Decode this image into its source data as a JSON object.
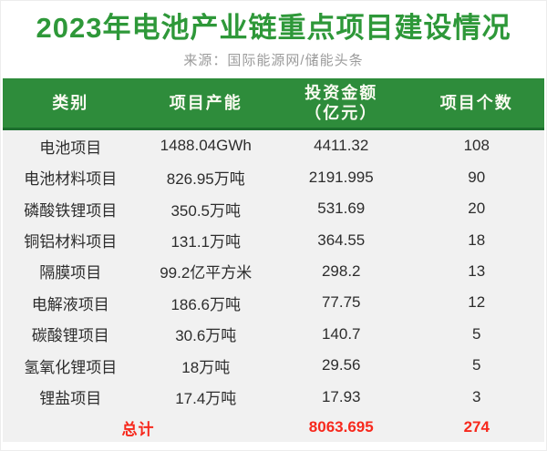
{
  "page": {
    "title": "2023年电池产业链重点项目建设情况",
    "source": "来源：国际能源网/储能头条"
  },
  "colors": {
    "header_green": "#2e8c3b",
    "header_green_dark": "#1c6e2d",
    "title_green": "#2e9839",
    "body_bg": "#f1f1f1",
    "total_red": "#f7281c",
    "source_gray": "#9b9b9b"
  },
  "table": {
    "headers": [
      "类别",
      "项目产能",
      "投资金额\n（亿元）",
      "项目个数"
    ],
    "rows": [
      {
        "category": "电池项目",
        "capacity": "1488.04GWh",
        "investment": "4411.32",
        "count": "108"
      },
      {
        "category": "电池材料项目",
        "capacity": "826.95万吨",
        "investment": "2191.995",
        "count": "90"
      },
      {
        "category": "磷酸铁锂项目",
        "capacity": "350.5万吨",
        "investment": "531.69",
        "count": "20"
      },
      {
        "category": "铜铝材料项目",
        "capacity": "131.1万吨",
        "investment": "364.55",
        "count": "18"
      },
      {
        "category": "隔膜项目",
        "capacity": "99.2亿平方米",
        "investment": "298.2",
        "count": "13"
      },
      {
        "category": "电解液项目",
        "capacity": "186.6万吨",
        "investment": "77.75",
        "count": "12"
      },
      {
        "category": "碳酸锂项目",
        "capacity": "30.6万吨",
        "investment": "140.7",
        "count": "5"
      },
      {
        "category": "氢氧化锂项目",
        "capacity": "18万吨",
        "investment": "29.56",
        "count": "5"
      },
      {
        "category": "锂盐项目",
        "capacity": "17.4万吨",
        "investment": "17.93",
        "count": "3"
      }
    ],
    "total": {
      "label": "总计",
      "investment": "8063.695",
      "count": "274"
    }
  },
  "chart_data": {
    "type": "table",
    "title": "2023年电池产业链重点项目建设情况",
    "subtitle": "来源：国际能源网/储能头条",
    "columns": [
      "类别",
      "项目产能",
      "投资金额（亿元）",
      "项目个数"
    ],
    "rows": [
      [
        "电池项目",
        "1488.04GWh",
        4411.32,
        108
      ],
      [
        "电池材料项目",
        "826.95万吨",
        2191.995,
        90
      ],
      [
        "磷酸铁锂项目",
        "350.5万吨",
        531.69,
        20
      ],
      [
        "铜铝材料项目",
        "131.1万吨",
        364.55,
        18
      ],
      [
        "隔膜项目",
        "99.2亿平方米",
        298.2,
        13
      ],
      [
        "电解液项目",
        "186.6万吨",
        77.75,
        12
      ],
      [
        "碳酸锂项目",
        "30.6万吨",
        140.7,
        5
      ],
      [
        "氢氧化锂项目",
        "18万吨",
        29.56,
        5
      ],
      [
        "锂盐项目",
        "17.4万吨",
        17.93,
        3
      ]
    ],
    "total_row": [
      "总计",
      "",
      8063.695,
      274
    ],
    "layout": {
      "header_bg": "#2e8c3b",
      "body_bg": "#f1f1f1",
      "total_color": "#f7281c",
      "grid": false
    }
  }
}
